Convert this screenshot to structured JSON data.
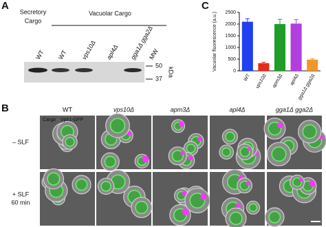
{
  "panel_labels": [
    "A",
    "B",
    "C"
  ],
  "blot": {
    "secretory_label": [
      "Secretory",
      "Cargo"
    ],
    "vacuolar_label": "Vacuolar Cargo",
    "lanes": [
      "WT",
      "WT",
      "vps10Δ",
      "apl4Δ",
      "gga1Δ gga2Δ",
      "MW"
    ],
    "markers": [
      50,
      37
    ],
    "marker_unit": "kDa"
  },
  "micrograph": {
    "columns": [
      "WT",
      "vps10Δ",
      "apm3Δ",
      "apl4Δ",
      "gga1Δ gga2Δ"
    ],
    "rows": [
      [
        "– SLF"
      ],
      [
        "+ SLF",
        "60 min"
      ]
    ],
    "legend": [
      {
        "name": "Cargo",
        "color": "#ff33ff"
      },
      {
        "name": "Vph1-GFP",
        "color": "#55ee55"
      }
    ]
  },
  "chart_data": {
    "type": "bar",
    "y_label": "Vacuolar fluorescence (a.u.)",
    "categories": [
      "WT",
      "vps10Δ",
      "apm3Δ",
      "apl4Δ",
      "gga1Δ gga2Δ"
    ],
    "values": [
      2100,
      330,
      2000,
      2020,
      480
    ],
    "errors": [
      130,
      40,
      200,
      170,
      40
    ],
    "colors": [
      "#1f3ff0",
      "#e82a1c",
      "#1e9e28",
      "#b23ee0",
      "#f0962a"
    ],
    "ylim": [
      0,
      2500
    ],
    "yticks": [
      0,
      500,
      1000,
      1500,
      2000,
      2500
    ]
  }
}
